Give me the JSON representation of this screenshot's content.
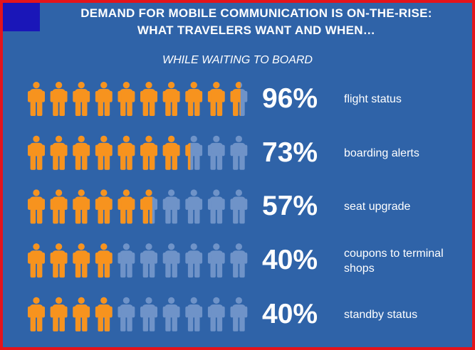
{
  "title_line1": "DEMAND FOR MOBILE COMMUNICATION IS ON-THE-RISE:",
  "title_line2": "WHAT TRAVELERS WANT AND WHEN…",
  "subtitle": "WHILE WAITING TO BOARD",
  "colors": {
    "background": "#2f63a8",
    "border": "#e4141b",
    "corner_block": "#1a16b8",
    "filled_icon": "#f7931e",
    "empty_icon": "#6f93c8"
  },
  "chart_data": {
    "type": "pictograph",
    "icons_per_row": 10,
    "rows": [
      {
        "value": 96,
        "display": "96%",
        "label": "flight status"
      },
      {
        "value": 73,
        "display": "73%",
        "label": "boarding alerts"
      },
      {
        "value": 57,
        "display": "57%",
        "label": "seat upgrade"
      },
      {
        "value": 40,
        "display": "40%",
        "label": "coupons to terminal shops"
      },
      {
        "value": 40,
        "display": "40%",
        "label": "standby status"
      }
    ]
  }
}
